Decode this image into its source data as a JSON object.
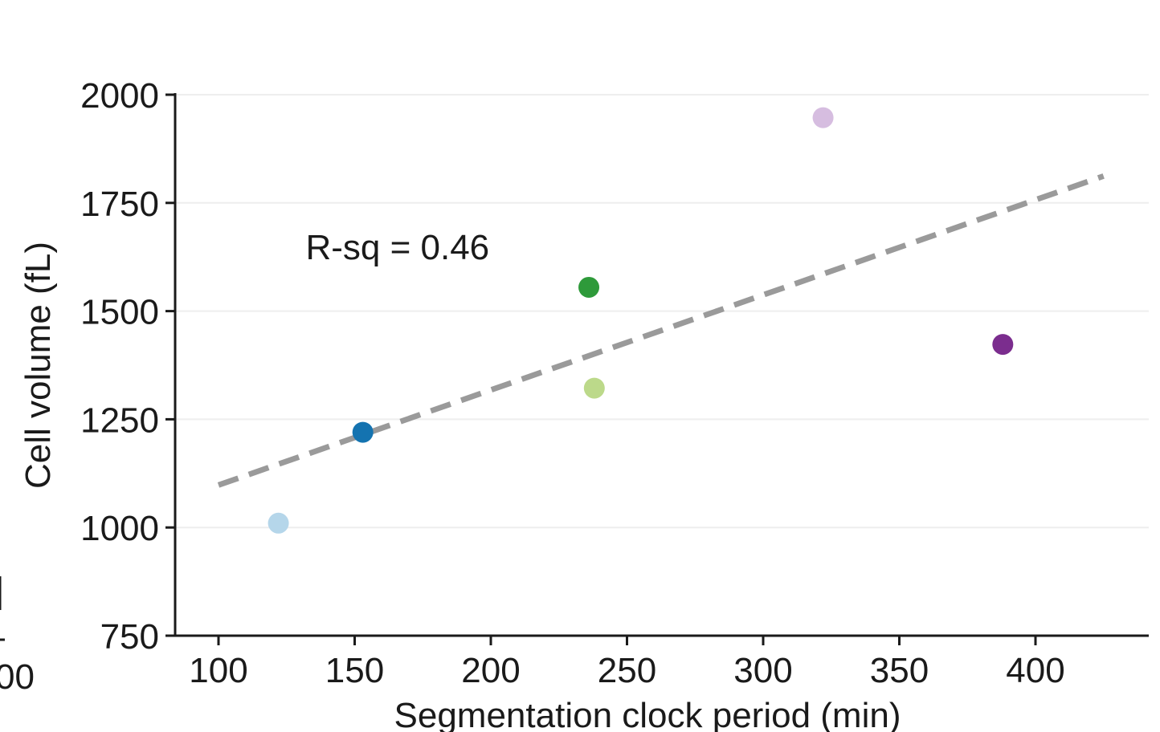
{
  "chart_data": {
    "type": "scatter",
    "title": "",
    "xlabel": "Segmentation clock period (min)",
    "ylabel": "Cell volume (fL)",
    "xlim": [
      85,
      445
    ],
    "ylim": [
      750,
      2000
    ],
    "xticks": [
      100,
      150,
      200,
      250,
      300,
      350,
      400
    ],
    "yticks": [
      750,
      1000,
      1250,
      1500,
      1750,
      2000
    ],
    "grid": "horizontal",
    "points": [
      {
        "x": 122,
        "y": 1010,
        "color": "#b5d6ea"
      },
      {
        "x": 153,
        "y": 1220,
        "color": "#1473b0"
      },
      {
        "x": 236,
        "y": 1555,
        "color": "#2e9a3a"
      },
      {
        "x": 238,
        "y": 1322,
        "color": "#bcd98a"
      },
      {
        "x": 322,
        "y": 1947,
        "color": "#d6bde0"
      },
      {
        "x": 388,
        "y": 1423,
        "color": "#7b2d8e"
      }
    ],
    "fit_line": {
      "x": [
        100,
        425
      ],
      "y": [
        1098,
        1812
      ],
      "color": "#9a9a9a",
      "style": "dashed"
    },
    "annotations": [
      {
        "text": "R-sq = 0.46",
        "x": 132,
        "y": 1620
      }
    ]
  },
  "left_fragment": {
    "tick_label": "00"
  }
}
